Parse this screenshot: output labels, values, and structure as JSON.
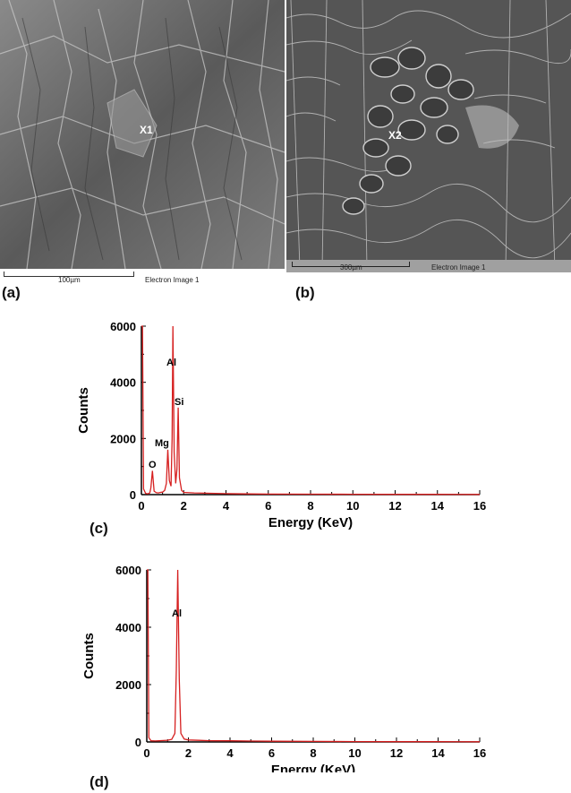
{
  "figure": {
    "panels": [
      {
        "letter": "(a)",
        "kind": "sem-image",
        "point_label": "X1",
        "scale_label": "100µm",
        "image_caption": "Electron Image 1"
      },
      {
        "letter": "(b)",
        "kind": "sem-image",
        "point_label": "X2",
        "scale_label": "300µm",
        "image_caption": "Electron Image 1"
      }
    ]
  },
  "chart_data": [
    {
      "panel": "(c)",
      "type": "line",
      "xlabel": "Energy (KeV)",
      "ylabel": "Counts",
      "xlim": [
        0,
        16
      ],
      "ylim": [
        0,
        6000
      ],
      "xticks": [
        0,
        2,
        4,
        6,
        8,
        10,
        12,
        14,
        16
      ],
      "yticks": [
        0,
        2000,
        4000,
        6000
      ],
      "grid": false,
      "line_color": "#d62020",
      "peaks": [
        {
          "element": "O",
          "energy": 0.52,
          "counts": 850
        },
        {
          "element": "Mg",
          "energy": 1.25,
          "counts": 1600
        },
        {
          "element": "Al",
          "energy": 1.49,
          "counts": 6000
        },
        {
          "element": "Si",
          "energy": 1.74,
          "counts": 3100
        }
      ],
      "x": [
        0,
        0.05,
        0.1,
        0.2,
        0.3,
        0.4,
        0.45,
        0.52,
        0.6,
        0.7,
        0.8,
        0.9,
        1.0,
        1.1,
        1.18,
        1.25,
        1.32,
        1.4,
        1.45,
        1.49,
        1.55,
        1.62,
        1.68,
        1.74,
        1.8,
        1.9,
        2.0,
        2.5,
        3.0,
        3.5,
        4.0,
        5.0,
        6.0,
        8.0,
        10.0,
        12.0,
        14.0,
        16.0
      ],
      "y": [
        6000,
        6000,
        200,
        40,
        30,
        60,
        250,
        850,
        120,
        70,
        60,
        80,
        90,
        150,
        400,
        1600,
        500,
        300,
        2000,
        6000,
        1500,
        400,
        900,
        3100,
        600,
        150,
        80,
        60,
        50,
        45,
        35,
        25,
        20,
        15,
        12,
        10,
        8,
        6
      ],
      "label_text": {
        "O": "O",
        "Mg": "Mg",
        "Al": "Al",
        "Si": "Si"
      }
    },
    {
      "panel": "(d)",
      "type": "line",
      "xlabel": "Energy (KeV)",
      "ylabel": "Counts",
      "xlim": [
        0,
        16
      ],
      "ylim": [
        0,
        6000
      ],
      "xticks": [
        0,
        2,
        4,
        6,
        8,
        10,
        12,
        14,
        16
      ],
      "yticks": [
        0,
        2000,
        4000,
        6000
      ],
      "grid": false,
      "line_color": "#d62020",
      "peaks": [
        {
          "element": "Al",
          "energy": 1.49,
          "counts": 6000
        }
      ],
      "x": [
        0,
        0.05,
        0.1,
        0.2,
        0.4,
        0.6,
        0.8,
        1.0,
        1.2,
        1.35,
        1.42,
        1.49,
        1.56,
        1.64,
        1.8,
        2.0,
        2.5,
        3.0,
        4.0,
        5.0,
        6.0,
        8.0,
        10.0,
        12.0,
        14.0,
        16.0
      ],
      "y": [
        6000,
        6000,
        150,
        40,
        35,
        40,
        50,
        60,
        90,
        300,
        2500,
        6000,
        2200,
        300,
        100,
        70,
        55,
        45,
        40,
        30,
        25,
        18,
        14,
        10,
        8,
        6
      ],
      "label_text": {
        "Al": "Al"
      }
    }
  ]
}
